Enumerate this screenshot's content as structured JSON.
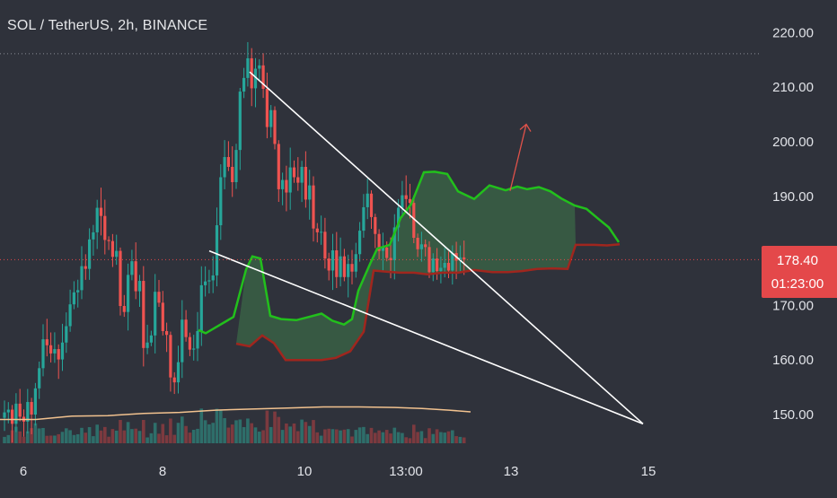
{
  "header": {
    "title": "SOL / TetherUS, 2h, BINANCE"
  },
  "last_price": {
    "price": "178.40",
    "countdown": "01:23:00",
    "color": "#e4484a"
  },
  "colors": {
    "background": "#2f323b",
    "up_candle": "#26a69a",
    "down_candle": "#ef5350",
    "volume_up": "#2e6e6a",
    "volume_down": "#7c3a3f",
    "cloud_line": "#22c01c",
    "base_line": "#a0261e",
    "cloud_fill": "#3e7a4a",
    "moving_average": "#f2c28f",
    "trendline": "#ffffff",
    "arrow": "#e0524a"
  },
  "chart_data": {
    "type": "candlestick",
    "title": "SOL / TetherUS, 2h, BINANCE",
    "x_tick_labels": [
      "6",
      "8",
      "10",
      "13:00",
      "13",
      "15"
    ],
    "y_tick_labels": [
      "220.00",
      "210.00",
      "200.00",
      "190.00",
      "170.00",
      "160.00",
      "150.00"
    ],
    "y_ticks": [
      220,
      210,
      200,
      190,
      170,
      160,
      150
    ],
    "ylim": [
      144.5,
      222.5
    ],
    "grid": false,
    "last_price": 178.4,
    "recent_high": 216.3,
    "close_series": [
      150.4,
      150.9,
      148.3,
      152.0,
      149.6,
      148.7,
      152.3,
      150.0,
      154.8,
      158.5,
      163.8,
      162.7,
      161.2,
      162.0,
      160.1,
      163.2,
      166.2,
      170.2,
      172.4,
      172.8,
      177.2,
      176.7,
      182.1,
      183.4,
      187.9,
      186.4,
      182.0,
      181.8,
      178.9,
      180.0,
      169.9,
      168.8,
      175.6,
      178.1,
      172.6,
      174.5,
      162.2,
      163.2,
      164.5,
      172.5,
      170.5,
      165.3,
      164.6,
      156.8,
      155.9,
      159.6,
      167.4,
      164.2,
      161.9,
      162.1,
      165.3,
      173.7,
      174.4,
      174.6,
      175.5,
      184.7,
      193.5,
      197.2,
      195.4,
      192.6,
      198.5,
      209.2,
      211.7,
      215.3,
      209.8,
      213.4,
      214.0,
      209.7,
      202.7,
      205.8,
      199.6,
      191.3,
      193.0,
      190.7,
      195.3,
      193.5,
      192.5,
      195.4,
      189.4,
      192.0,
      184.1,
      183.4,
      183.5,
      178.6,
      176.4,
      180.1,
      175.2,
      179.0,
      175.2,
      177.6,
      176.2,
      179.4,
      183.7,
      188.0,
      190.5,
      186.2,
      183.1,
      180.0,
      180.6,
      178.7,
      178.3,
      184.3,
      187.9,
      190.2,
      189.5,
      188.8,
      182.4,
      180.3,
      181.2,
      180.7,
      176.1,
      178.6,
      176.3,
      176.9,
      177.8,
      176.4,
      179.6,
      178.2,
      178.8,
      178.4
    ],
    "series": [
      {
        "name": "",
        "style": "cloud-line",
        "values": [
          [
            221,
            165.5
          ],
          [
            229,
            164.9
          ],
          [
            260,
            167.9
          ],
          [
            274,
            176.6
          ],
          [
            281,
            179.0
          ],
          [
            290,
            178.6
          ],
          [
            301,
            168.1
          ],
          [
            313,
            167.5
          ],
          [
            330,
            167.3
          ],
          [
            344,
            167.9
          ],
          [
            358,
            168.5
          ],
          [
            370,
            167.2
          ],
          [
            383,
            166.5
          ],
          [
            392,
            167.5
          ],
          [
            399,
            172.7
          ],
          [
            412,
            177.6
          ],
          [
            420,
            180.4
          ],
          [
            434,
            181.1
          ],
          [
            446,
            186.0
          ],
          [
            458,
            188.6
          ],
          [
            472,
            194.4
          ],
          [
            484,
            194.5
          ],
          [
            498,
            194.1
          ],
          [
            510,
            190.9
          ],
          [
            528,
            189.5
          ],
          [
            545,
            192.0
          ],
          [
            563,
            191.1
          ],
          [
            576,
            191.8
          ],
          [
            587,
            191.3
          ],
          [
            600,
            191.7
          ],
          [
            613,
            190.9
          ],
          [
            625,
            189.6
          ],
          [
            640,
            188.3
          ],
          [
            653,
            187.7
          ],
          [
            666,
            185.9
          ],
          [
            678,
            184.3
          ],
          [
            689,
            181.6
          ]
        ]
      },
      {
        "name": "",
        "style": "base-line",
        "values": [
          [
            263,
            163.0
          ],
          [
            278,
            162.5
          ],
          [
            292,
            164.5
          ],
          [
            305,
            163.1
          ],
          [
            318,
            160.0
          ],
          [
            330,
            160.0
          ],
          [
            346,
            160.0
          ],
          [
            358,
            160.0
          ],
          [
            374,
            160.4
          ],
          [
            390,
            161.6
          ],
          [
            405,
            165.2
          ],
          [
            416,
            176.4
          ],
          [
            430,
            176.2
          ],
          [
            445,
            176.0
          ],
          [
            461,
            176.0
          ],
          [
            476,
            175.7
          ],
          [
            493,
            176.0
          ],
          [
            510,
            176.0
          ],
          [
            528,
            176.5
          ],
          [
            548,
            176.1
          ],
          [
            566,
            176.1
          ],
          [
            581,
            176.3
          ],
          [
            598,
            176.7
          ],
          [
            615,
            176.8
          ],
          [
            632,
            176.7
          ],
          [
            641,
            181.1
          ],
          [
            662,
            181.1
          ],
          [
            676,
            181.0
          ],
          [
            690,
            181.2
          ]
        ]
      },
      {
        "name": "",
        "style": "moving-average",
        "values": [
          [
            0,
            149.1
          ],
          [
            40,
            149.1
          ],
          [
            80,
            149.7
          ],
          [
            120,
            149.8
          ],
          [
            160,
            150.2
          ],
          [
            200,
            150.4
          ],
          [
            240,
            150.8
          ],
          [
            280,
            151.0
          ],
          [
            320,
            151.2
          ],
          [
            360,
            151.4
          ],
          [
            400,
            151.4
          ],
          [
            440,
            151.3
          ],
          [
            470,
            151.1
          ],
          [
            500,
            150.8
          ],
          [
            524,
            150.5
          ]
        ]
      }
    ],
    "annotations": [
      {
        "type": "trendline",
        "from": [
          278,
          212.8
        ],
        "to": [
          716,
          148.3
        ]
      },
      {
        "type": "trendline",
        "from": [
          233,
          180.0
        ],
        "to": [
          716,
          148.3
        ]
      },
      {
        "type": "arrow",
        "from": [
          568,
          191.0
        ],
        "to": [
          586,
          203.2
        ]
      }
    ]
  }
}
